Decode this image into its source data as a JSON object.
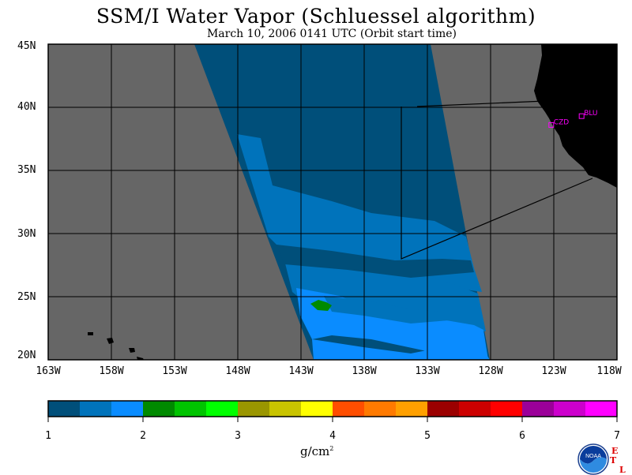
{
  "header": {
    "title": "SSM/I Water Vapor (Schluessel algorithm)",
    "subtitle": "March 10, 2006  0141 UTC  (Orbit start time)"
  },
  "map": {
    "lat_labels": [
      "45N",
      "40N",
      "35N",
      "30N",
      "25N",
      "20N"
    ],
    "lon_labels": [
      "163W",
      "158W",
      "153W",
      "148W",
      "143W",
      "138W",
      "133W",
      "128W",
      "123W",
      "118W"
    ],
    "stations": [
      {
        "label": "CZD",
        "lat": 38.6,
        "lon": -123.2,
        "color": "#ff00ff"
      },
      {
        "label": "BLU",
        "lat": 39.3,
        "lon": -120.8,
        "color": "#ff00ff"
      }
    ],
    "colors": {
      "ocean_nodata": "#666666",
      "land": "#000000",
      "grid": "#000000"
    }
  },
  "colorbar": {
    "tick_labels": [
      "1",
      "2",
      "3",
      "4",
      "5",
      "6",
      "7"
    ],
    "units_base": "g/cm",
    "units_exp": "2",
    "colors": [
      "#004f7a",
      "#0073bb",
      "#0a8cff",
      "#008a00",
      "#00c400",
      "#00ff00",
      "#9a9600",
      "#c9c400",
      "#ffff00",
      "#ff4e00",
      "#ff7a00",
      "#ffa000",
      "#9b0000",
      "#cc0000",
      "#ff0000",
      "#9b0099",
      "#cc00cc",
      "#ff00ff"
    ]
  },
  "logo": {
    "text": "NOAA",
    "etl_letters": [
      "E",
      "T",
      "L"
    ]
  }
}
